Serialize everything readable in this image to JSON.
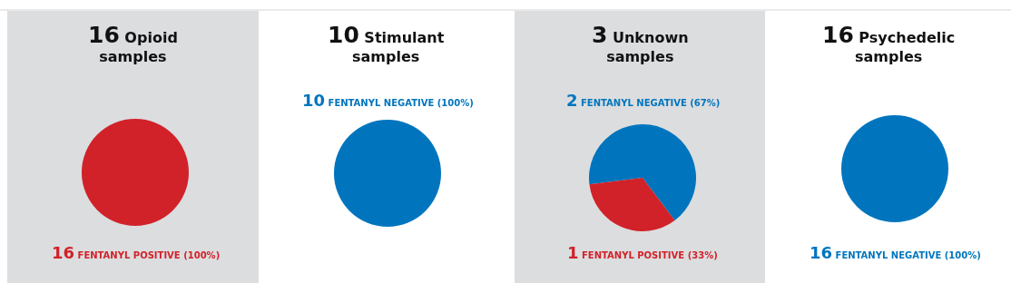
{
  "chart_data": [
    {
      "type": "pie",
      "title": "16 Opioid samples",
      "categories": [
        "FENTANYL POSITIVE (100%)"
      ],
      "values": [
        16
      ],
      "value_labels": [
        "16"
      ],
      "colors": [
        "#d12229"
      ]
    },
    {
      "type": "pie",
      "title": "10 Stimulant samples",
      "categories": [
        "FENTANYL NEGATIVE (100%)"
      ],
      "values": [
        10
      ],
      "value_labels": [
        "10"
      ],
      "colors": [
        "#0075be"
      ]
    },
    {
      "type": "pie",
      "title": "3 Unknown samples",
      "categories": [
        "FENTANYL NEGATIVE (67%)",
        "FENTANYL POSITIVE (33%)"
      ],
      "values": [
        2,
        1
      ],
      "value_labels": [
        "2",
        "1"
      ],
      "colors": [
        "#0075be",
        "#d12229"
      ]
    },
    {
      "type": "pie",
      "title": "16 Psychedelic samples",
      "categories": [
        "FENTANYL NEGATIVE (100%)"
      ],
      "values": [
        16
      ],
      "value_labels": [
        "16"
      ],
      "colors": [
        "#0075be"
      ]
    }
  ]
}
